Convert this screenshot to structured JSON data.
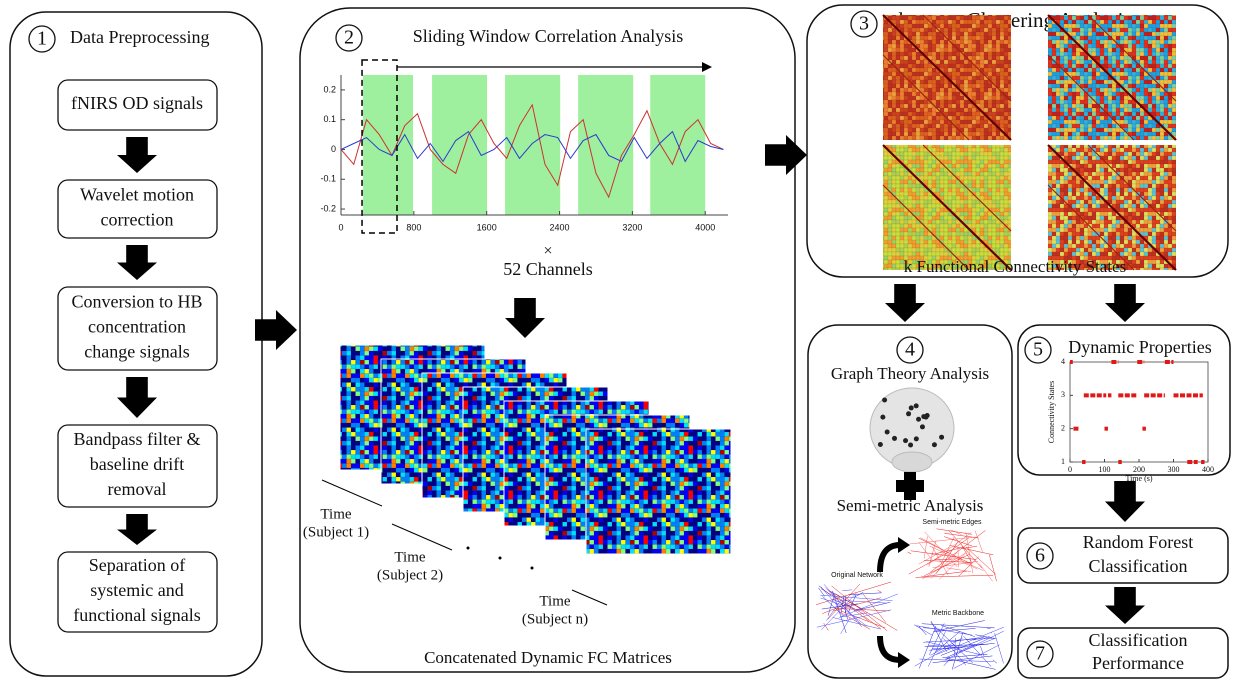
{
  "panel1": {
    "number": "1",
    "title": "Data Preprocessing",
    "steps": [
      [
        "fNIRS OD signals"
      ],
      [
        "Wavelet motion",
        "correction"
      ],
      [
        "Conversion to HB",
        "concentration",
        "change signals"
      ],
      [
        "Bandpass filter &",
        "baseline drift",
        "removal"
      ],
      [
        "Separation of",
        "systemic and",
        "functional signals"
      ]
    ]
  },
  "panel2": {
    "number": "2",
    "title": "Sliding Window Correlation Analysis",
    "signal_plot": {
      "type": "line",
      "x": [
        0,
        140,
        280,
        420,
        560,
        700,
        840,
        980,
        1120,
        1260,
        1400,
        1540,
        1680,
        1820,
        1960,
        2100,
        2240,
        2380,
        2520,
        2660,
        2800,
        2940,
        3080,
        3220,
        3360,
        3500,
        3640,
        3780,
        3920,
        4060,
        4200
      ],
      "series": [
        {
          "color": "#d03030",
          "values": [
            0.0,
            -0.05,
            0.1,
            0.05,
            -0.02,
            0.08,
            0.12,
            0.0,
            -0.05,
            -0.08,
            0.05,
            0.1,
            0.02,
            -0.03,
            0.08,
            0.15,
            -0.05,
            -0.12,
            0.06,
            0.1,
            -0.08,
            -0.16,
            -0.02,
            0.05,
            0.13,
            0.02,
            -0.05,
            0.06,
            0.1,
            0.02,
            0.0
          ]
        },
        {
          "color": "#2a3ad0",
          "values": [
            0.0,
            0.02,
            0.04,
            0.0,
            -0.02,
            0.05,
            -0.03,
            0.02,
            -0.04,
            0.03,
            0.06,
            -0.02,
            0.0,
            0.04,
            -0.03,
            0.02,
            0.05,
            0.04,
            -0.03,
            0.03,
            0.05,
            -0.02,
            -0.04,
            0.04,
            -0.03,
            0.02,
            0.06,
            -0.04,
            0.03,
            0.01,
            0.0
          ]
        }
      ],
      "windows": [
        [
          242,
          791
        ],
        [
          1000,
          1604
        ],
        [
          1802,
          2407
        ],
        [
          2604,
          3209
        ],
        [
          3396,
          4000
        ]
      ],
      "window_color": "#9ef09e",
      "selected_window": [
        231,
        615
      ],
      "xlim": [
        0,
        4250
      ],
      "xticks": [
        0,
        800,
        1600,
        2400,
        3200,
        4000
      ],
      "ylim": [
        -0.22,
        0.25
      ],
      "yticks": [
        0.2,
        0.1,
        0,
        -0.1,
        -0.2
      ]
    },
    "multiply": "×",
    "channels": "52 Channels",
    "time_labels": [
      [
        "Time",
        "(Subject 1)"
      ],
      [
        "Time",
        "(Subject 2)"
      ],
      [
        "Time",
        "(Subject n)"
      ]
    ],
    "footer": "Concatenated Dynamic FC Matrices"
  },
  "panel3": {
    "number": "3",
    "title": "k-mean Clustering Analysis",
    "footer": "k Functional Connectivity States"
  },
  "panel4": {
    "number": "4",
    "title": "Graph Theory Analysis",
    "subtitle": "Semi-metric Analysis",
    "network_labels": {
      "semi_metric": "Semi-metric Edges",
      "original": "Original Network",
      "backbone": "Metric Backbone"
    }
  },
  "panel5": {
    "number": "5",
    "title": "Dynamic Properties",
    "state_plot": {
      "type": "segments",
      "ylabel": "Connectivity States",
      "xlabel": "Time (s)",
      "xlim": [
        0,
        400
      ],
      "xticks": [
        0,
        100,
        200,
        300,
        400
      ],
      "ylim": [
        1,
        4
      ],
      "yticks": [
        1,
        2,
        3,
        4
      ],
      "color": "#e01818",
      "segments": [
        {
          "state": 4,
          "start": 0,
          "end": 8
        },
        {
          "state": 2,
          "start": 10,
          "end": 25
        },
        {
          "state": 1,
          "start": 35,
          "end": 45
        },
        {
          "state": 3,
          "start": 40,
          "end": 105
        },
        {
          "state": 2,
          "start": 100,
          "end": 110
        },
        {
          "state": 3,
          "start": 110,
          "end": 120
        },
        {
          "state": 4,
          "start": 120,
          "end": 140
        },
        {
          "state": 1,
          "start": 140,
          "end": 150
        },
        {
          "state": 3,
          "start": 140,
          "end": 195
        },
        {
          "state": 4,
          "start": 195,
          "end": 215
        },
        {
          "state": 2,
          "start": 210,
          "end": 220
        },
        {
          "state": 3,
          "start": 215,
          "end": 275
        },
        {
          "state": 4,
          "start": 275,
          "end": 300
        },
        {
          "state": 3,
          "start": 300,
          "end": 385
        },
        {
          "state": 1,
          "start": 340,
          "end": 370
        },
        {
          "state": 1,
          "start": 380,
          "end": 390
        }
      ]
    }
  },
  "panel6": {
    "number": "6",
    "title": [
      "Random Forest",
      "Classification"
    ]
  },
  "panel7": {
    "number": "7",
    "title": [
      "Classification",
      "Performance"
    ]
  }
}
